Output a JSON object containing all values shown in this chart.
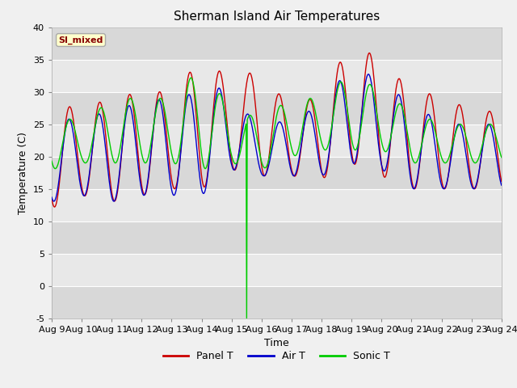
{
  "title": "Sherman Island Air Temperatures",
  "xlabel": "Time",
  "ylabel": "Temperature (C)",
  "ylim": [
    -5,
    40
  ],
  "xlim": [
    0,
    15
  ],
  "x_tick_labels": [
    "Aug 9",
    "Aug 10",
    "Aug 11",
    "Aug 12",
    "Aug 13",
    "Aug 14",
    "Aug 15",
    "Aug 16",
    "Aug 17",
    "Aug 18",
    "Aug 19",
    "Aug 20",
    "Aug 21",
    "Aug 22",
    "Aug 23",
    "Aug 24"
  ],
  "panel_T_color": "#cc0000",
  "air_T_color": "#0000cc",
  "sonic_T_color": "#00cc00",
  "legend_label": "SI_mixed",
  "legend_bg": "#ffffcc",
  "legend_border": "#aaaaaa",
  "legend_text_color": "#880000",
  "plot_bg_dark": "#d8d8d8",
  "plot_bg_light": "#e8e8e8",
  "title_fontsize": 11,
  "axis_fontsize": 9,
  "tick_fontsize": 8,
  "panel_daily_max": [
    28,
    27.5,
    29,
    30,
    30,
    35,
    32,
    33.5,
    27,
    30,
    37.5,
    35,
    30,
    29.5,
    27
  ],
  "panel_daily_min": [
    12,
    14,
    13,
    14,
    15,
    15,
    18,
    17,
    17,
    16.5,
    19,
    17,
    15,
    15,
    15
  ],
  "air_daily_max": [
    25.5,
    26,
    27,
    28.5,
    29,
    30,
    31,
    23,
    27,
    27,
    35,
    31,
    28.5,
    25,
    25
  ],
  "air_daily_min": [
    13,
    14,
    13,
    14,
    14,
    14,
    18,
    17,
    17,
    17,
    19,
    18,
    15,
    15,
    15
  ],
  "sonic_daily_max": [
    27,
    25,
    29,
    29,
    29,
    34,
    27,
    26,
    29,
    29,
    33,
    30,
    27,
    25,
    25
  ],
  "sonic_daily_min": [
    18,
    19,
    19,
    19,
    19,
    18,
    19,
    18,
    20,
    21,
    21,
    21,
    19,
    19,
    19
  ],
  "spike_t": 6.5,
  "spike_bottom": -5.0
}
